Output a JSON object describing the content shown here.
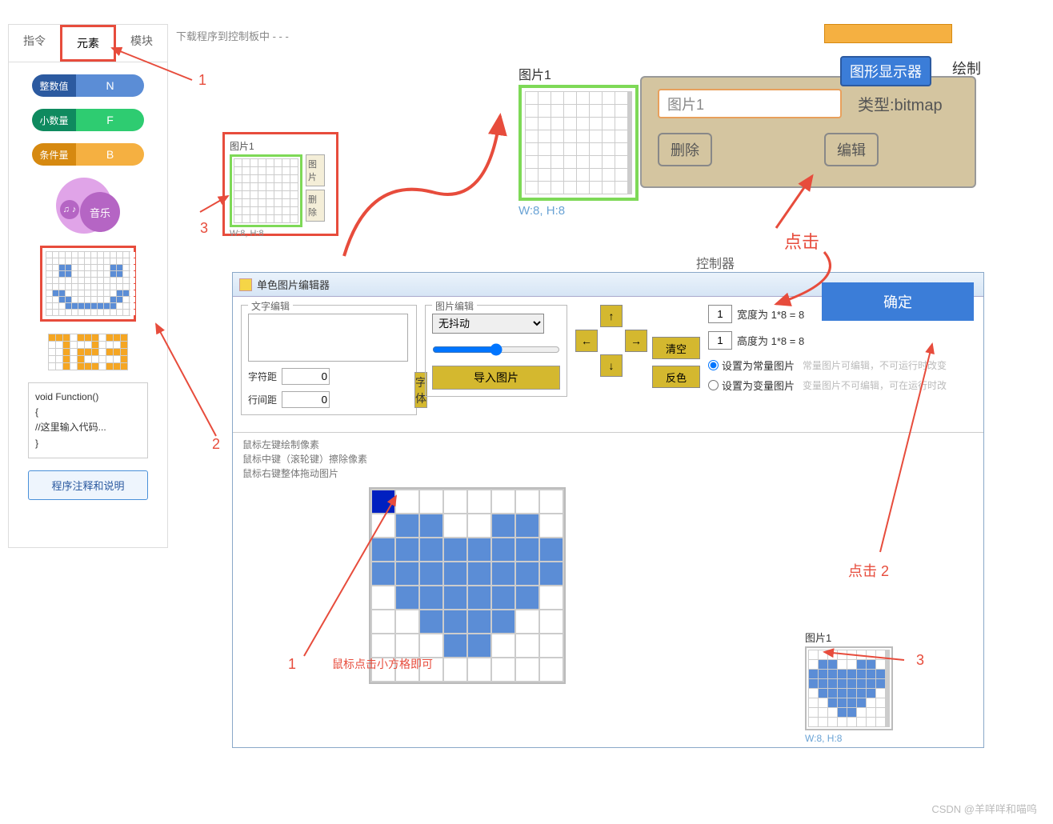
{
  "sidebar": {
    "tabs": [
      "指令",
      "元素",
      "模块"
    ],
    "active_tab": 1,
    "int_label": "整数值",
    "int_var": "N",
    "float_label": "小数量",
    "float_var": "F",
    "cond_label": "条件量",
    "cond_var": "B",
    "music_label": "音乐",
    "music_note": "♫ ♪",
    "music_color": "#b565c4",
    "smile_pattern": [
      [
        0,
        0,
        0,
        0,
        0,
        0,
        0,
        0,
        0,
        0,
        0,
        0,
        0,
        0
      ],
      [
        0,
        0,
        0,
        0,
        0,
        0,
        0,
        0,
        0,
        0,
        0,
        0,
        0,
        0
      ],
      [
        0,
        0,
        1,
        1,
        0,
        0,
        0,
        0,
        0,
        0,
        1,
        1,
        0,
        0
      ],
      [
        0,
        0,
        1,
        1,
        0,
        0,
        0,
        0,
        0,
        0,
        1,
        1,
        0,
        0
      ],
      [
        0,
        0,
        0,
        0,
        0,
        0,
        0,
        0,
        0,
        0,
        0,
        0,
        0,
        0
      ],
      [
        0,
        0,
        0,
        0,
        0,
        0,
        0,
        0,
        0,
        0,
        0,
        0,
        0,
        0
      ],
      [
        0,
        1,
        1,
        0,
        0,
        0,
        0,
        0,
        0,
        0,
        0,
        1,
        1,
        0
      ],
      [
        0,
        0,
        1,
        1,
        0,
        0,
        0,
        0,
        0,
        0,
        1,
        1,
        0,
        0
      ],
      [
        0,
        0,
        0,
        1,
        1,
        1,
        1,
        1,
        1,
        1,
        1,
        0,
        0,
        0
      ],
      [
        0,
        0,
        0,
        0,
        0,
        0,
        0,
        0,
        0,
        0,
        0,
        0,
        0,
        0
      ]
    ],
    "digits_pattern": [
      [
        1,
        1,
        1,
        0,
        1,
        1,
        1,
        0,
        1,
        1,
        1
      ],
      [
        0,
        0,
        1,
        0,
        0,
        0,
        1,
        0,
        0,
        0,
        1
      ],
      [
        0,
        0,
        1,
        0,
        1,
        1,
        1,
        0,
        1,
        1,
        1
      ],
      [
        0,
        0,
        1,
        0,
        1,
        0,
        0,
        0,
        0,
        0,
        1
      ],
      [
        0,
        0,
        1,
        0,
        1,
        1,
        1,
        0,
        1,
        1,
        1
      ]
    ],
    "code_lines": [
      "void Function()",
      "{",
      "   //这里输入代码...",
      "}"
    ],
    "explain_btn": "程序注释和说明"
  },
  "download_text": "下载程序到控制板中 -  -  -",
  "mini": {
    "title": "图片1",
    "btn1": "图片",
    "btn2": "删除",
    "dim": "W:8, H:8"
  },
  "preview": {
    "title": "图片1",
    "dim": "W:8, H:8"
  },
  "prop": {
    "name": "图片1",
    "type_label": "类型:bitmap",
    "del": "删除",
    "edit": "编辑"
  },
  "top_right": {
    "display": "图形显示器",
    "draw": "绘制"
  },
  "ctrl_label": "控制器",
  "editor": {
    "title": "单色图片编辑器",
    "text_group": "文字编辑",
    "char_gap": "字符距",
    "line_gap": "行间距",
    "font_btn": "字体",
    "img_group": "图片编辑",
    "dither": "无抖动",
    "import_btn": "导入图片",
    "clear": "清空",
    "invert": "反色",
    "width_label": "宽度为 1*8 = 8",
    "width_val": "1",
    "height_label": "高度为 1*8 = 8",
    "height_val": "1",
    "radio1": "设置为常量图片",
    "hint1": "常量图片可编辑，不可运行时改变",
    "radio2": "设置为变量图片",
    "hint2": "变量图片不可编辑，可在运行时改",
    "ok": "确定",
    "hints": [
      "鼠标左键绘制像素",
      "鼠标中键（滚轮键）擦除像素",
      "鼠标右键整体拖动图片"
    ],
    "heart_pattern": [
      [
        2,
        0,
        0,
        0,
        0,
        0,
        0,
        0
      ],
      [
        0,
        1,
        1,
        0,
        0,
        1,
        1,
        0
      ],
      [
        1,
        1,
        1,
        1,
        1,
        1,
        1,
        1
      ],
      [
        1,
        1,
        1,
        1,
        1,
        1,
        1,
        1
      ],
      [
        0,
        1,
        1,
        1,
        1,
        1,
        1,
        0
      ],
      [
        0,
        0,
        1,
        1,
        1,
        1,
        0,
        0
      ],
      [
        0,
        0,
        0,
        1,
        1,
        0,
        0,
        0
      ],
      [
        0,
        0,
        0,
        0,
        0,
        0,
        0,
        0
      ]
    ]
  },
  "result": {
    "title": "图片1",
    "dim": "W:8, H:8",
    "heart": [
      [
        0,
        0,
        0,
        0,
        0,
        0,
        0,
        0
      ],
      [
        0,
        1,
        1,
        0,
        0,
        1,
        1,
        0
      ],
      [
        1,
        1,
        1,
        1,
        1,
        1,
        1,
        1
      ],
      [
        1,
        1,
        1,
        1,
        1,
        1,
        1,
        1
      ],
      [
        0,
        1,
        1,
        1,
        1,
        1,
        1,
        0
      ],
      [
        0,
        0,
        1,
        1,
        1,
        1,
        0,
        0
      ],
      [
        0,
        0,
        0,
        1,
        1,
        0,
        0,
        0
      ],
      [
        0,
        0,
        0,
        0,
        0,
        0,
        0,
        0
      ]
    ]
  },
  "anno": {
    "n1": "1",
    "n2": "2",
    "n3": "3",
    "click": "点击",
    "click2": "点击  2",
    "mouse_hint": "鼠标点击小方格即可",
    "result3": "3"
  },
  "watermark": "CSDN @羊咩咩和喵呜",
  "colors": {
    "red": "#e74c3c",
    "blue": "#5b8dd6",
    "green_border": "#7ed957",
    "olive": "#d4b82f",
    "tan": "#d4c5a0",
    "link_blue": "#3b7dd8"
  }
}
